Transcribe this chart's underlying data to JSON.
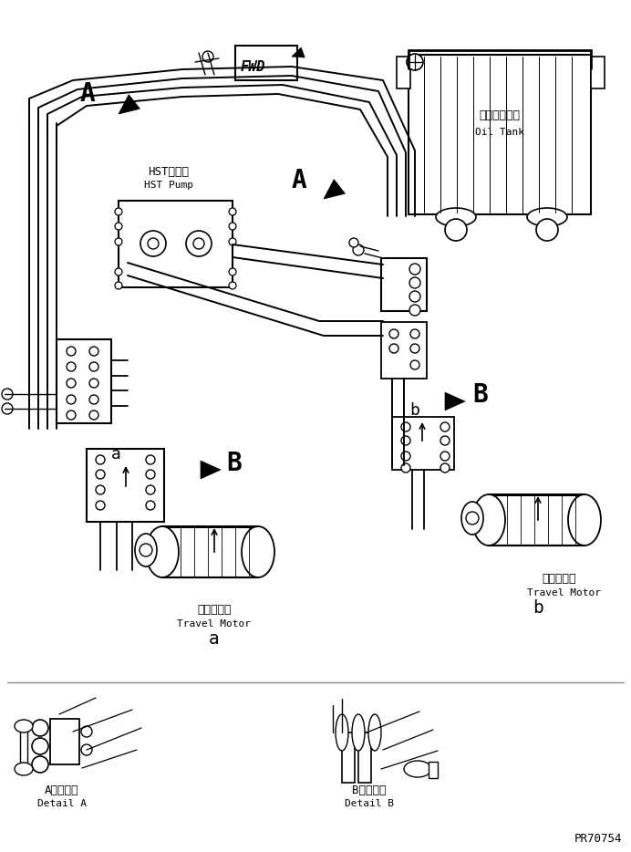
{
  "bg_color": "#ffffff",
  "line_color": "#000000",
  "fig_width": 6.92,
  "fig_height": 9.34,
  "dpi": 100,
  "labels": {
    "hst_jp": "HSTポンプ",
    "hst_en": "HST Pump",
    "oil_tank_jp": "オイルタンク",
    "oil_tank_en": "Oil Tank",
    "travel_motor_jp_a": "走行モータ",
    "travel_motor_en_a": "Travel Motor",
    "travel_motor_jp_b": "走行モータ",
    "travel_motor_en_b": "Travel Motor",
    "label_A1": "A",
    "label_A2": "A",
    "label_B1": "B",
    "label_B2": "B",
    "label_a_small": "a",
    "label_b_small": "b",
    "detail_a_jp": "A　詳　細",
    "detail_a_en": "Detail A",
    "detail_b_jp": "B　詳　細",
    "detail_b_en": "Detail B",
    "fwd": "FWD",
    "part_num": "PR70754"
  }
}
